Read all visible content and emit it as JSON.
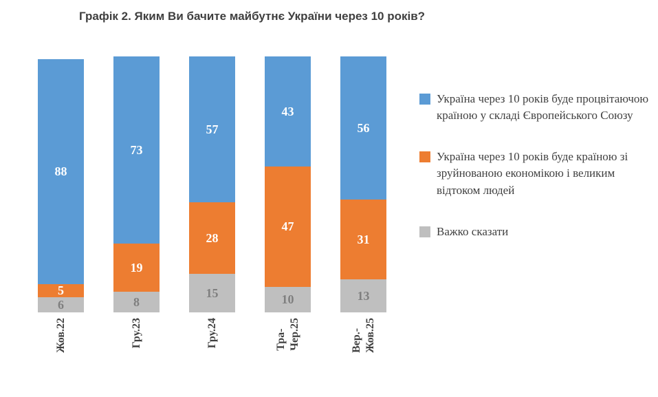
{
  "title": "Графік 2. Яким Ви бачите майбутнє України через 10 років?",
  "chart_data": {
    "type": "bar",
    "stacked": true,
    "orientation": "vertical",
    "title": "Графік 2. Яким Ви бачите майбутнє України через 10 років?",
    "categories": [
      "Жов.22",
      "Гру.23",
      "Гру.24",
      "Тра-\nЧер.25",
      "Вер.-\nЖов.25"
    ],
    "series": [
      {
        "name": "Україна через 10 років буде процвітаючою країною у складі Європейського Союзу",
        "color": "#5B9BD5",
        "label_color": "#FFFFFF",
        "values": [
          88,
          73,
          57,
          43,
          56
        ]
      },
      {
        "name": "Україна через 10 років буде країною зі зруйнованою економікою і великим відтоком людей",
        "color": "#ED7D31",
        "label_color": "#FFFFFF",
        "values": [
          5,
          19,
          28,
          47,
          31
        ]
      },
      {
        "name": "Важко сказати",
        "color": "#BFBFBF",
        "label_color": "#7F7F7F",
        "values": [
          6,
          8,
          15,
          10,
          13
        ]
      }
    ],
    "ylim": [
      0,
      100
    ],
    "grid": false,
    "legend_position": "right",
    "data_labels": true
  }
}
